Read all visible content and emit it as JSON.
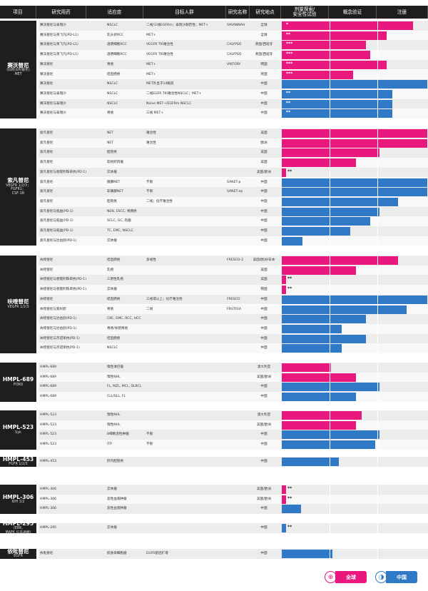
{
  "colors": {
    "global": "#e8187f",
    "china": "#2f79c6",
    "dark": "#1e1e1e"
  },
  "header": [
    "项目",
    "研究用药",
    "适应症",
    "目标人群",
    "研究名称",
    "研究地点",
    "剂量探索/\n安全性试验",
    "概念验证",
    "注册"
  ],
  "blocks": [
    {
      "name": "赛沃替尼",
      "sub": "(旧称沃利替尼)\nMET",
      "rows": [
        [
          "赛沃替尼与泰瑞沙",
          "NSCLC",
          "二线/三线EGFRm；泰瑞沙耐药性；MET+",
          "SAVANNAH",
          "全球",
          "g",
          0.9,
          "*"
        ],
        [
          "赛沃替尼与英飞凡(PD-L1)",
          "乳头状RCC",
          "MET+",
          "",
          "全球",
          "g",
          0.72,
          "**"
        ],
        [
          "赛沃替尼与英飞凡(PD-L1)",
          "透明细胞RCC",
          "VEGFR TKI难治性",
          "CALYPSO",
          "英国/西班牙",
          "g",
          0.58,
          "***"
        ],
        [
          "赛沃替尼与英飞凡(PD-L1)",
          "透明细胞RCC",
          "VEGFR TKI难治性",
          "CALYPSO",
          "英国/西班牙",
          "g",
          0.61,
          "***"
        ],
        [
          "赛沃替尼",
          "胃癌",
          "MET+",
          "VIKTORY",
          "韩国",
          "g",
          0.72,
          "***"
        ],
        [
          "赛沃替尼",
          "结直肠癌",
          "MET+",
          "",
          "英国",
          "g",
          0.49,
          "***"
        ],
        [
          "赛沃替尼",
          "NSCLC",
          "MET外显子14跳跃",
          "",
          "中国",
          "b",
          1.0,
          ""
        ],
        [
          "赛沃替尼与泰瑞沙",
          "NSCLC",
          "二线EGFR TKI难治性NSCLC；MET+",
          "",
          "中国",
          "b",
          0.76,
          "**"
        ],
        [
          "赛沃替尼与泰瑞沙",
          "NSCLC",
          "Naïve MET+/EGFRm NSCLC",
          "",
          "中国",
          "b",
          0.76,
          "**"
        ],
        [
          "赛沃替尼与泰瑞沙",
          "胃癌",
          "三线 MET+",
          "",
          "中国",
          "b",
          0.76,
          "**"
        ]
      ]
    },
    {
      "name": "索凡替尼",
      "sub": "VEGFR 1/2/3；\nFGFR1；\nCSF-1R",
      "rows": [
        [
          "索凡替尼",
          "NET",
          "难治性",
          "",
          "美国",
          "g",
          1.0,
          ""
        ],
        [
          "索凡替尼",
          "NET",
          "难治性",
          "",
          "欧洲",
          "g",
          1.0,
          ""
        ],
        [
          "索凡替尼",
          "胆管癌",
          "",
          "",
          "美国",
          "g",
          0.67,
          ""
        ],
        [
          "索凡替尼",
          "软组织肉瘤",
          "",
          "",
          "美国",
          "g",
          0.51,
          ""
        ],
        [
          "索凡替尼与替雷利珠单抗(PD-1)",
          "实体瘤",
          "",
          "",
          "美国/欧洲",
          "g",
          0.03,
          "**"
        ],
        [
          "索凡替尼",
          "胰腺NET",
          "不限",
          "SANET-p",
          "中国",
          "b",
          1.0,
          ""
        ],
        [
          "索凡替尼",
          "非胰腺NET",
          "不限",
          "SANET-ep",
          "中国",
          "b",
          1.0,
          ""
        ],
        [
          "索凡替尼",
          "胆管癌",
          "二线；化疗难治性",
          "",
          "中国",
          "b",
          0.8,
          ""
        ],
        [
          "索凡替尼与拓益(PD-1)",
          "NEN, ESCC, 胃肠癌",
          "",
          "",
          "中国",
          "b",
          0.67,
          ""
        ],
        [
          "索凡替尼与拓益(PD-1)",
          "SCLC, GC, 肉瘤",
          "",
          "",
          "中国",
          "b",
          0.61,
          ""
        ],
        [
          "索凡替尼与拓益(PD-1)",
          "TC, EMC, NSCLC",
          "",
          "",
          "中国",
          "b",
          0.47,
          ""
        ],
        [
          "索凡替尼与达伯舒(PD-1)",
          "实体瘤",
          "",
          "",
          "中国",
          "b",
          0.14,
          ""
        ]
      ]
    },
    {
      "name": "呋喹替尼",
      "sub": "VEGFR 1/2/3",
      "rows": [
        [
          "呋喹替尼",
          "结直肠癌",
          "多线性",
          "FRESCO-2",
          "美国/欧洲/日本",
          "g",
          0.8,
          ""
        ],
        [
          "呋喹替尼",
          "乳癌",
          "",
          "",
          "美国",
          "g",
          0.51,
          ""
        ],
        [
          "呋喹替尼与替雷利珠单抗(PD-1)",
          "三阴性乳癌",
          "",
          "",
          "美国",
          "g",
          0.03,
          "**"
        ],
        [
          "呋喹替尼与替雷利珠单抗(PD-1)",
          "实体瘤",
          "",
          "",
          "韩国",
          "g",
          0.03,
          "**"
        ],
        [
          "呋喹替尼",
          "结直肠癌",
          "三线或以上；化疗难治性",
          "FRESCO",
          "中国",
          "b",
          1.0,
          ""
        ],
        [
          "呋喹替尼与紫杉醇",
          "胃癌",
          "二线",
          "FRUTIGA",
          "中国",
          "b",
          0.86,
          ""
        ],
        [
          "呋喹替尼与达伯舒(PD-1)",
          "CRC, EMC, RCC, HCC",
          "",
          "",
          "中国",
          "b",
          0.58,
          ""
        ],
        [
          "呋喹替尼与达伯舒(PD-1)",
          "胃癌/食管胃癌",
          "",
          "",
          "中国",
          "b",
          0.41,
          ""
        ],
        [
          "呋喹替尼与杰诺单抗(PD-1)",
          "结直肠癌",
          "",
          "",
          "中国",
          "b",
          0.58,
          ""
        ],
        [
          "呋喹替尼与杰诺单抗(PD-1)",
          "NSCLC",
          "",
          "",
          "中国",
          "b",
          0.41,
          ""
        ]
      ]
    },
    {
      "name": "HMPL-689",
      "sub": "PI3Kδ",
      "rows": [
        [
          "HMPL-689",
          "惰性淋巴瘤",
          "",
          "",
          "澳大利亚",
          "g",
          0.34,
          ""
        ],
        [
          "HMPL-689",
          "惰性NHL",
          "",
          "",
          "美国/欧洲",
          "g",
          0.51,
          ""
        ],
        [
          "HMPL-689",
          "FL, MZL, MCL, DLBCL",
          "",
          "",
          "中国",
          "b",
          0.67,
          ""
        ],
        [
          "HMPL-689",
          "CLL/SLL, FL",
          "",
          "",
          "中国",
          "b",
          0.51,
          ""
        ]
      ]
    },
    {
      "name": "HMPL-523",
      "sub": "Syk",
      "rows": [
        [
          "HMPL-523",
          "惰性NHL",
          "",
          "",
          "澳大利亚",
          "g",
          0.55,
          ""
        ],
        [
          "HMPL-523",
          "惰性NHL",
          "",
          "",
          "美国/欧洲",
          "g",
          0.51,
          ""
        ],
        [
          "HMPL-523",
          "B细胞恶性肿瘤",
          "不限",
          "",
          "中国",
          "b",
          0.67,
          ""
        ],
        [
          "HMPL-523",
          "ITP",
          "不限",
          "",
          "中国",
          "b",
          0.64,
          ""
        ]
      ]
    },
    {
      "name": "HMPL-453",
      "sub": "FGFR 1/2/3",
      "rows": [
        [
          "HMPL-453",
          "肝内胆管癌",
          "",
          "",
          "中国",
          "b",
          0.39,
          ""
        ]
      ]
    },
    {
      "name": "HMPL-306",
      "sub": "IDH 1/2",
      "rows": [
        [
          "HMPL-306",
          "实体瘤",
          "",
          "",
          "美国/欧洲",
          "g",
          0.03,
          "**"
        ],
        [
          "HMPL-306",
          "恶性血液肿瘤",
          "",
          "",
          "美国/欧洲",
          "g",
          0.03,
          "**"
        ],
        [
          "HMPL-306",
          "恶性血液肿瘤",
          "",
          "",
          "中国",
          "b",
          0.13,
          ""
        ]
      ]
    },
    {
      "name": "HMPL-295",
      "sub": "(ERK,\nMAPK 信号通路)",
      "rows": [
        [
          "HMPL-295",
          "实体瘤",
          "",
          "",
          "中国",
          "b",
          0.03,
          "**"
        ]
      ]
    },
    {
      "name": "依吡替尼",
      "sub": "EGFR",
      "rows": [
        [
          "依吡替尼",
          "胶质母细胞瘤",
          "EGFR基因扩增",
          "",
          "中国",
          "b",
          0.35,
          ""
        ]
      ]
    }
  ],
  "legend": {
    "global": "全球",
    "china": "中国",
    "global_icon": "globe-icon",
    "china_icon": "china-map-icon"
  }
}
